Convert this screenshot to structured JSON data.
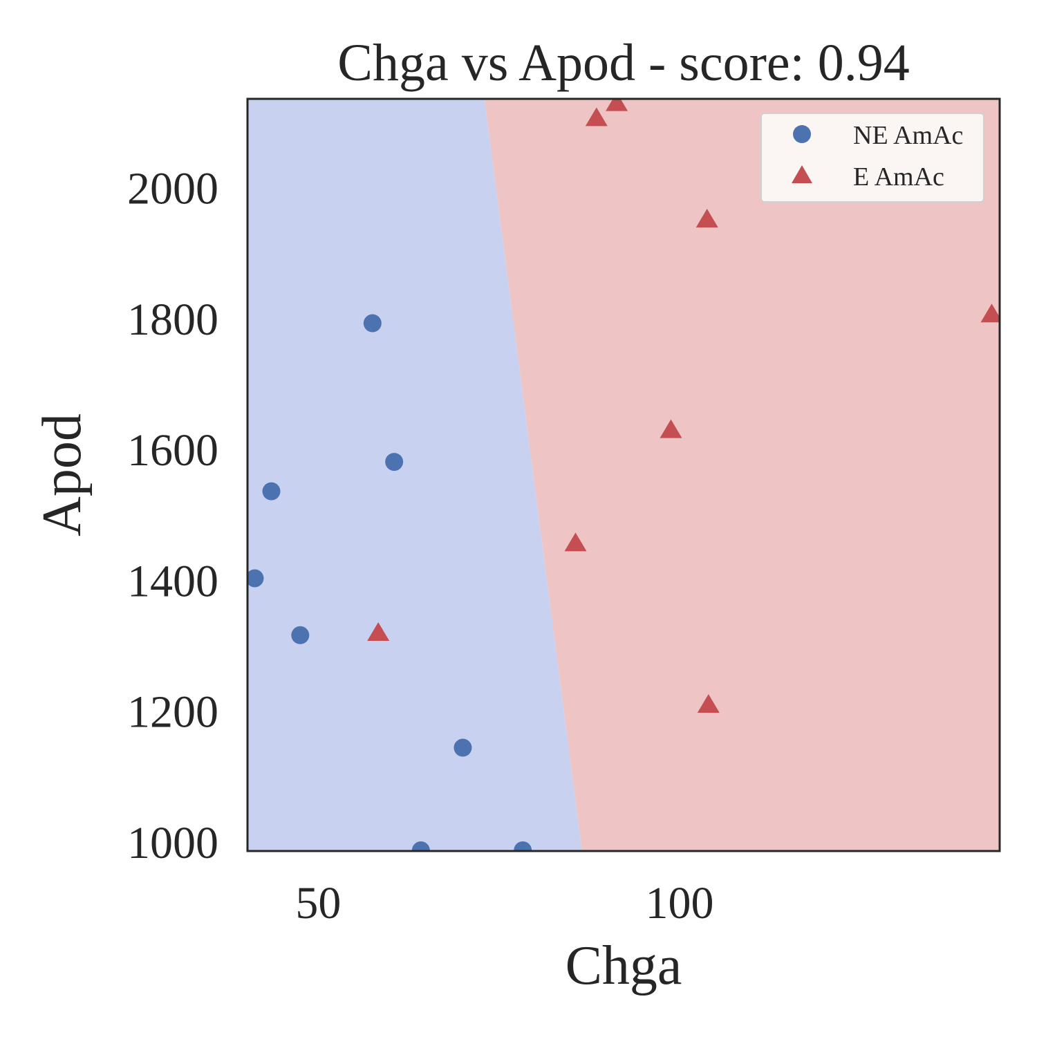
{
  "chart_data": {
    "type": "scatter",
    "title": "Chga vs Apod - score: 0.94",
    "xlabel": "Chga",
    "ylabel": "Apod",
    "xlim": [
      40.2,
      144.3
    ],
    "ylim": [
      985,
      2135
    ],
    "x_ticks": [
      50,
      100
    ],
    "y_ticks": [
      1000,
      1200,
      1400,
      1600,
      1800,
      2000
    ],
    "grid": false,
    "legend_position": "top-right",
    "decision_regions": {
      "left_color": "#c8d1f0",
      "right_color": "#eec4c4",
      "boundary": [
        {
          "x": 73.0,
          "y": 2135
        },
        {
          "x": 86.5,
          "y": 985
        }
      ]
    },
    "series": [
      {
        "name": "NE AmAc",
        "marker": "circle",
        "color": "#4c72b0",
        "points": [
          {
            "x": 57.5,
            "y": 1792
          },
          {
            "x": 60.5,
            "y": 1580
          },
          {
            "x": 43.5,
            "y": 1535
          },
          {
            "x": 41.2,
            "y": 1402
          },
          {
            "x": 47.5,
            "y": 1315
          },
          {
            "x": 70.0,
            "y": 1143
          },
          {
            "x": 64.2,
            "y": 986
          },
          {
            "x": 78.3,
            "y": 986
          }
        ]
      },
      {
        "name": "E AmAc",
        "marker": "triangle",
        "color": "#c44e52",
        "points": [
          {
            "x": 88.5,
            "y": 2105
          },
          {
            "x": 91.3,
            "y": 2128
          },
          {
            "x": 103.8,
            "y": 1950
          },
          {
            "x": 143.2,
            "y": 1805
          },
          {
            "x": 98.8,
            "y": 1628
          },
          {
            "x": 85.6,
            "y": 1455
          },
          {
            "x": 58.3,
            "y": 1318
          },
          {
            "x": 104.0,
            "y": 1208
          }
        ]
      }
    ]
  }
}
